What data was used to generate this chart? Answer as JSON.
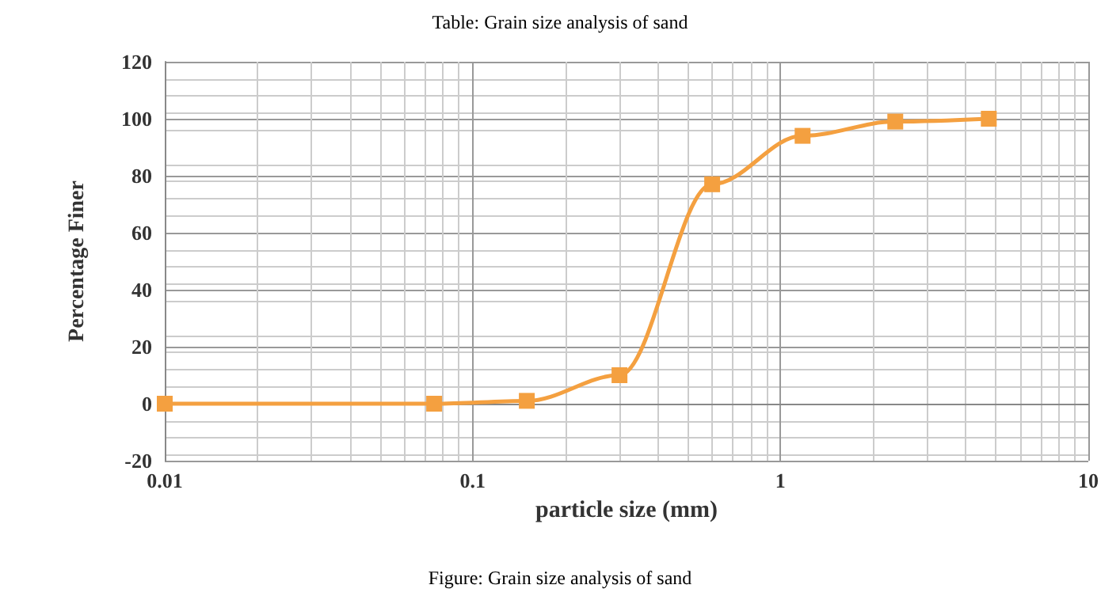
{
  "chart_data": {
    "type": "line",
    "title": "Table: Grain size analysis of sand",
    "xlabel": "particle size (mm)",
    "ylabel": "Percentage Finer",
    "annotations": [
      "Figure: Grain size analysis of sand"
    ],
    "x": [
      0.01,
      0.075,
      0.15,
      0.3,
      0.6,
      1.18,
      2.36,
      4.75
    ],
    "series": [
      {
        "color": "#f4a040",
        "values": [
          0,
          0,
          1,
          10,
          77,
          94,
          99,
          100
        ]
      }
    ],
    "log": "x",
    "xlim": [
      0.01,
      10
    ],
    "xticks": [
      0.01,
      0.1,
      1,
      10
    ],
    "ylim": [
      -20,
      120
    ],
    "yticks": [
      -20,
      0,
      20,
      40,
      60,
      80,
      100,
      120
    ],
    "grid": true,
    "marker": "square",
    "line_style": "solid"
  }
}
